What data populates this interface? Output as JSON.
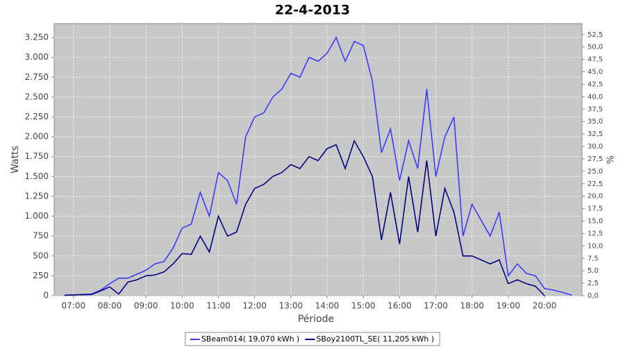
{
  "chart_data": {
    "type": "line",
    "title": "22-4-2013",
    "x_label": "Période",
    "y_label": "Watts",
    "y2_label": "%",
    "x": [
      "06:45",
      "07:00",
      "07:15",
      "07:30",
      "07:45",
      "08:00",
      "08:15",
      "08:30",
      "08:45",
      "09:00",
      "09:15",
      "09:30",
      "09:45",
      "10:00",
      "10:15",
      "10:30",
      "10:45",
      "11:00",
      "11:15",
      "11:30",
      "11:45",
      "12:00",
      "12:15",
      "12:30",
      "12:45",
      "13:00",
      "13:15",
      "13:30",
      "13:45",
      "14:00",
      "14:15",
      "14:30",
      "14:45",
      "15:00",
      "15:15",
      "15:30",
      "15:45",
      "16:00",
      "16:15",
      "16:30",
      "16:45",
      "17:00",
      "17:15",
      "17:30",
      "17:45",
      "18:00",
      "18:15",
      "18:30",
      "18:45",
      "19:00",
      "19:15",
      "19:30",
      "19:45",
      "20:00",
      "20:15",
      "20:30",
      "20:45"
    ],
    "series": [
      {
        "name": "SBeam014( 19,070 kWh )",
        "color": "#3a3aff",
        "values": [
          5,
          10,
          15,
          20,
          70,
          150,
          220,
          220,
          270,
          320,
          400,
          430,
          600,
          850,
          900,
          1300,
          1000,
          1550,
          1450,
          1150,
          2000,
          2250,
          2300,
          2500,
          2600,
          2800,
          2750,
          3000,
          2950,
          3050,
          3250,
          2950,
          3200,
          3150,
          2700,
          1800,
          2100,
          1450,
          1950,
          1600,
          2600,
          1500,
          2000,
          2250,
          750,
          1150,
          950,
          750,
          1050,
          250,
          400,
          280,
          250,
          90,
          70,
          40,
          5
        ]
      },
      {
        "name": "SBoy2100TL_SE( 11,205 kWh )",
        "color": "#000080",
        "values": [
          5,
          10,
          12,
          15,
          60,
          110,
          20,
          170,
          200,
          250,
          260,
          300,
          400,
          530,
          520,
          750,
          550,
          1000,
          750,
          800,
          1150,
          1350,
          1400,
          1500,
          1550,
          1650,
          1600,
          1750,
          1700,
          1850,
          1900,
          1600,
          1950,
          1750,
          1500,
          700,
          1300,
          650,
          1500,
          800,
          1700,
          750,
          1350,
          1050,
          500,
          500,
          450,
          400,
          450,
          150,
          200,
          150,
          120,
          0,
          null,
          null,
          null
        ]
      }
    ],
    "xlim": [
      "06:28",
      "21:02"
    ],
    "xticks": [
      "07:00",
      "08:00",
      "09:00",
      "10:00",
      "11:00",
      "12:00",
      "13:00",
      "14:00",
      "15:00",
      "16:00",
      "17:00",
      "18:00",
      "19:00",
      "20:00"
    ],
    "ylim": [
      0,
      3425
    ],
    "yticks": [
      0,
      250,
      500,
      750,
      {
        "value": 1000,
        "label": "1.000"
      },
      {
        "value": 1250,
        "label": "1.250"
      },
      {
        "value": 1500,
        "label": "1.500"
      },
      {
        "value": 1750,
        "label": "1.750"
      },
      {
        "value": 2000,
        "label": "2.000"
      },
      {
        "value": 2250,
        "label": "2.250"
      },
      {
        "value": 2500,
        "label": "2.500"
      },
      {
        "value": 2750,
        "label": "2.750"
      },
      {
        "value": 3000,
        "label": "3.000"
      },
      {
        "value": 3250,
        "label": "3.250"
      }
    ],
    "y2lim": [
      0,
      54.7
    ],
    "y2ticks": [
      {
        "value": 0,
        "label": "0,0"
      },
      {
        "value": 2.5,
        "label": "2,5"
      },
      {
        "value": 5,
        "label": "5,0"
      },
      {
        "value": 7.5,
        "label": "7,5"
      },
      {
        "value": 10,
        "label": "10,0"
      },
      {
        "value": 12.5,
        "label": "12,5"
      },
      {
        "value": 15,
        "label": "15,0"
      },
      {
        "value": 17.5,
        "label": "17,5"
      },
      {
        "value": 20,
        "label": "20,0"
      },
      {
        "value": 22.5,
        "label": "22,5"
      },
      {
        "value": 25,
        "label": "25,0"
      },
      {
        "value": 27.5,
        "label": "27,5"
      },
      {
        "value": 30,
        "label": "30,0"
      },
      {
        "value": 32.5,
        "label": "32,5"
      },
      {
        "value": 35,
        "label": "35,0"
      },
      {
        "value": 37.5,
        "label": "37,5"
      },
      {
        "value": 40,
        "label": "40,0"
      },
      {
        "value": 42.5,
        "label": "42,5"
      },
      {
        "value": 45,
        "label": "45,0"
      },
      {
        "value": 47.5,
        "label": "47,5"
      },
      {
        "value": 50,
        "label": "50,0"
      },
      {
        "value": 52.5,
        "label": "52,5"
      }
    ],
    "grid": true,
    "background": "#c8c8c8",
    "legend": "bottom"
  }
}
